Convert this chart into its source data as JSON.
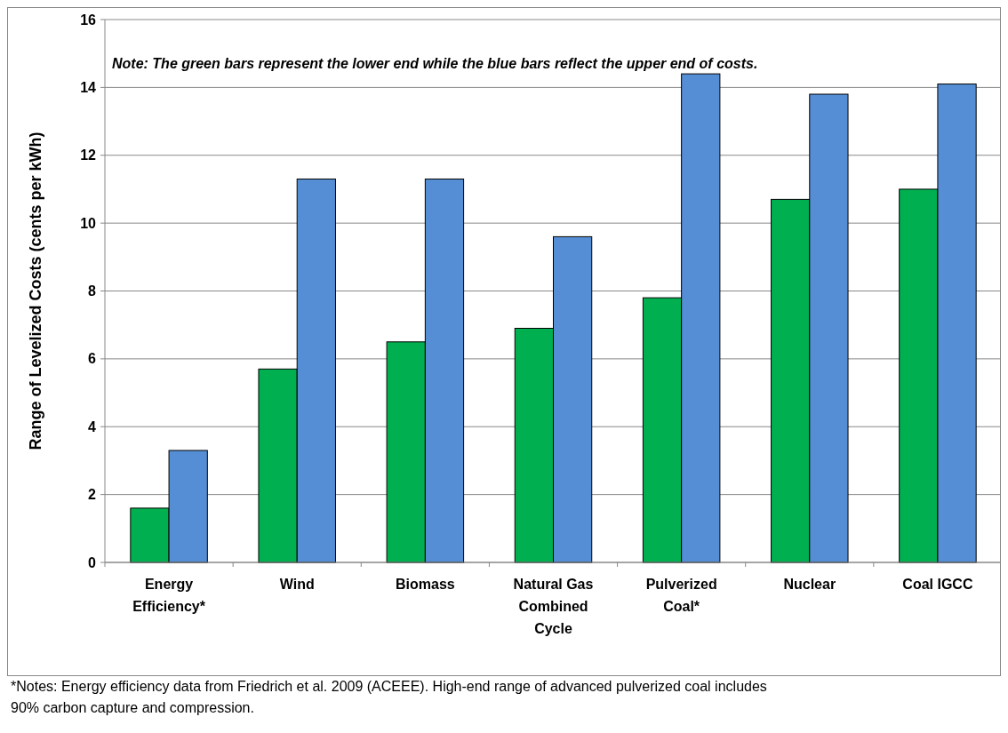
{
  "chart_data": {
    "type": "bar",
    "ylabel": "Range of Levelized Costs (cents per kWh)",
    "categories": [
      "Energy Efficiency*",
      "Wind",
      "Biomass",
      "Natural Gas Combined Cycle",
      "Pulverized Coal*",
      "Nuclear",
      "Coal IGCC"
    ],
    "series": [
      {
        "color": "#00b050",
        "values": [
          1.6,
          5.7,
          6.5,
          6.9,
          7.8,
          10.7,
          11.0
        ]
      },
      {
        "color": "#558ed5",
        "values": [
          3.3,
          11.3,
          11.3,
          9.6,
          14.4,
          13.8,
          14.1
        ]
      }
    ],
    "ylim": [
      0,
      16
    ],
    "yticks": [
      0,
      2,
      4,
      6,
      8,
      10,
      12,
      14,
      16
    ],
    "grid": "y",
    "annotations": [
      "Note: The green bars represent the lower end while the blue  bars reflect the upper end of costs.",
      "*Notes: Energy efficiency data from Friedrich et al. 2009 (ACEEE). High-end range of advanced pulverized coal includes 90% carbon capture and compression."
    ]
  }
}
